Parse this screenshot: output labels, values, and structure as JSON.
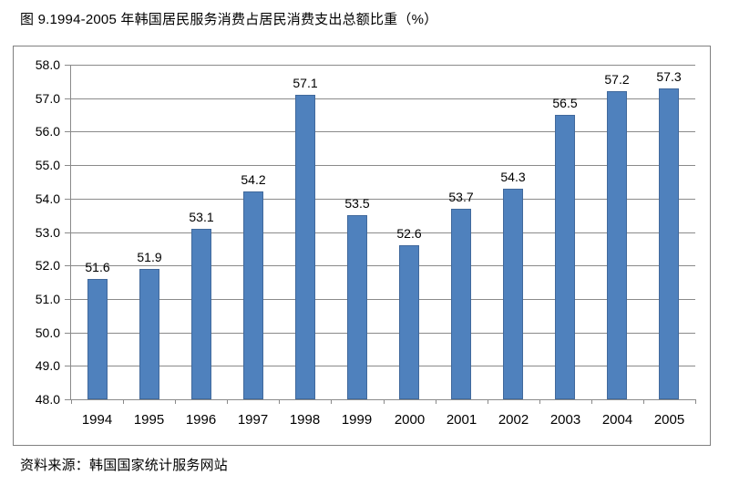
{
  "title": "图 9.1994-2005 年韩国居民服务消费占居民消费支出总额比重（%）",
  "source": "资料来源：韩国国家统计服务网站",
  "colors": {
    "bar_fill": "#4f81bd",
    "bar_border": "#41699c",
    "gridline": "#8a8a8a",
    "axis": "#8a8a8a",
    "frame_border": "#808080",
    "text": "#000000",
    "background": "#ffffff"
  },
  "chart_data": {
    "type": "bar",
    "title": "图 9.1994-2005 年韩国居民服务消费占居民消费支出总额比重（%）",
    "categories": [
      "1994",
      "1995",
      "1996",
      "1997",
      "1998",
      "1999",
      "2000",
      "2001",
      "2002",
      "2003",
      "2004",
      "2005"
    ],
    "values": [
      51.6,
      51.9,
      53.1,
      54.2,
      57.1,
      53.5,
      52.6,
      53.7,
      54.3,
      56.5,
      57.2,
      57.3
    ],
    "data_labels": [
      "51.6",
      "51.9",
      "53.1",
      "54.2",
      "57.1",
      "53.5",
      "52.6",
      "53.7",
      "54.3",
      "56.5",
      "57.2",
      "57.3"
    ],
    "xlabel": "",
    "ylabel": "",
    "ylim": [
      48.0,
      58.0
    ],
    "ytick_step": 1.0,
    "yticks": [
      "48.0",
      "49.0",
      "50.0",
      "51.0",
      "52.0",
      "53.0",
      "54.0",
      "55.0",
      "56.0",
      "57.0",
      "58.0"
    ],
    "grid": true,
    "legend": "none",
    "data_labels_shown": true
  }
}
